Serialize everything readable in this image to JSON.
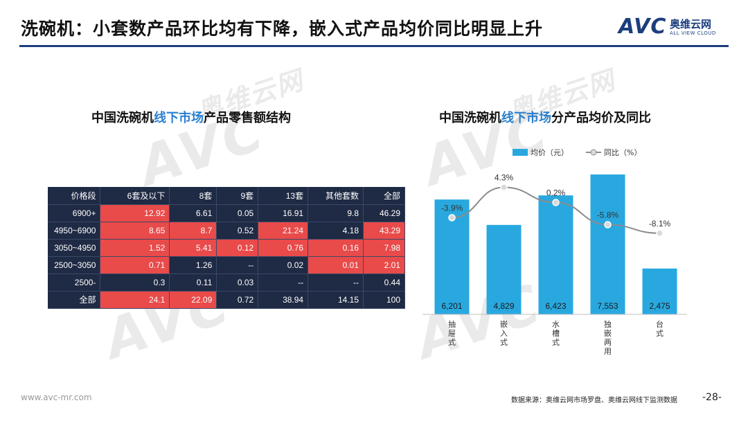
{
  "header": {
    "title": "洗碗机：小套数产品环比均有下降，嵌入式产品均价同比明显上升",
    "logo_text": "AVC",
    "logo_cn": "奥维云网",
    "logo_en": "ALL VIEW CLOUD",
    "accent_color": "#1b3e7e"
  },
  "watermark": {
    "brand": "AVC",
    "cn": "奥维云网",
    "en": "ALL VIEW CLOUD"
  },
  "left_section": {
    "title_prefix": "中国洗碗机",
    "title_highlight": "线下市场",
    "title_suffix": "产品零售额结构"
  },
  "right_section": {
    "title_prefix": "中国洗碗机",
    "title_highlight": "线下市场",
    "title_suffix": "分产品均价及同比"
  },
  "chart_data": [
    {
      "type": "table",
      "columns": [
        "价格段",
        "6套及以下",
        "8套",
        "9套",
        "13套",
        "其他套数",
        "全部"
      ],
      "rows": [
        {
          "label": "6900+",
          "cells": [
            "12.92",
            "6.61",
            "0.05",
            "16.91",
            "9.8",
            "46.29"
          ],
          "highlight": [
            1,
            0,
            0,
            0,
            0,
            0
          ]
        },
        {
          "label": "4950~6900",
          "cells": [
            "8.65",
            "8.7",
            "0.52",
            "21.24",
            "4.18",
            "43.29"
          ],
          "highlight": [
            1,
            1,
            0,
            1,
            0,
            1
          ]
        },
        {
          "label": "3050~4950",
          "cells": [
            "1.52",
            "5.41",
            "0.12",
            "0.76",
            "0.16",
            "7.98"
          ],
          "highlight": [
            1,
            1,
            1,
            1,
            1,
            1
          ]
        },
        {
          "label": "2500~3050",
          "cells": [
            "0.71",
            "1.26",
            "--",
            "0.02",
            "0.01",
            "2.01"
          ],
          "highlight": [
            1,
            0,
            0,
            0,
            1,
            1
          ]
        },
        {
          "label": "2500-",
          "cells": [
            "0.3",
            "0.11",
            "0.03",
            "--",
            "--",
            "0.44"
          ],
          "highlight": [
            0,
            0,
            0,
            0,
            0,
            0
          ]
        },
        {
          "label": "全部",
          "cells": [
            "24.1",
            "22.09",
            "0.72",
            "38.94",
            "14.15",
            "100"
          ],
          "highlight": [
            1,
            1,
            0,
            0,
            0,
            0
          ]
        }
      ],
      "colors": {
        "header_bg": "#1f2a44",
        "highlight": "#e94a4a",
        "normal": "#1f2a44"
      }
    },
    {
      "type": "bar",
      "categories": [
        "抽屉式",
        "嵌入式",
        "水槽式",
        "独嵌两用",
        "台式"
      ],
      "series": [
        {
          "name": "均价（元）",
          "values": [
            6201,
            4829,
            6423,
            7553,
            2475
          ],
          "labels": [
            "6,201",
            "4,829",
            "6,423",
            "7,553",
            "2,475"
          ],
          "color": "#29a8e0"
        },
        {
          "name": "同比（%）",
          "type": "line",
          "values": [
            -3.9,
            4.3,
            0.2,
            -5.8,
            -8.1
          ],
          "labels": [
            "-3.9%",
            "4.3%",
            "0.2%",
            "-5.8%",
            "-8.1%"
          ],
          "color": "#8c8c8c"
        }
      ],
      "ylim": [
        0,
        8000
      ],
      "y2lim": [
        -30,
        10
      ],
      "legend": "top"
    }
  ],
  "footer": {
    "website": "www.avc-mr.com",
    "source": "数据来源：奥维云网市场罗盘、奥维云网线下监测数据",
    "page": "-28-"
  }
}
